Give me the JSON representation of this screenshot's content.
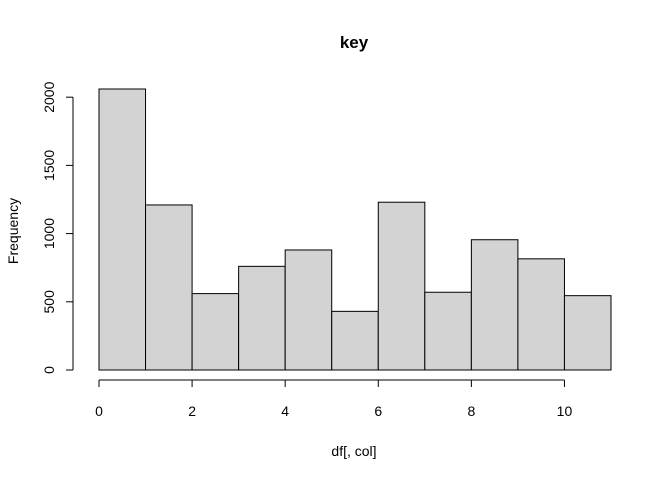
{
  "chart_data": {
    "type": "bar",
    "title": "key",
    "xlabel": "df[, col]",
    "ylabel": "Frequency",
    "bins": [
      {
        "start": 0,
        "end": 1,
        "count": 2060
      },
      {
        "start": 1,
        "end": 2,
        "count": 1210
      },
      {
        "start": 2,
        "end": 3,
        "count": 560
      },
      {
        "start": 3,
        "end": 4,
        "count": 760
      },
      {
        "start": 4,
        "end": 5,
        "count": 880
      },
      {
        "start": 5,
        "end": 6,
        "count": 430
      },
      {
        "start": 6,
        "end": 7,
        "count": 1230
      },
      {
        "start": 7,
        "end": 8,
        "count": 570
      },
      {
        "start": 8,
        "end": 9,
        "count": 955
      },
      {
        "start": 9,
        "end": 10,
        "count": 815
      },
      {
        "start": 10,
        "end": 11,
        "count": 545
      }
    ],
    "xlim": [
      0,
      11
    ],
    "ylim": [
      0,
      2060
    ],
    "x_ticks": [
      0,
      2,
      4,
      6,
      8,
      10
    ],
    "x_tick_labels": [
      "0",
      "2",
      "4",
      "6",
      "8",
      "10"
    ],
    "y_ticks": [
      0,
      500,
      1000,
      1500,
      2000
    ],
    "y_tick_labels": [
      "0",
      "500",
      "1000",
      "1500",
      "2000"
    ],
    "bar_color": "#d3d3d3",
    "grid": false,
    "legend": "none"
  }
}
